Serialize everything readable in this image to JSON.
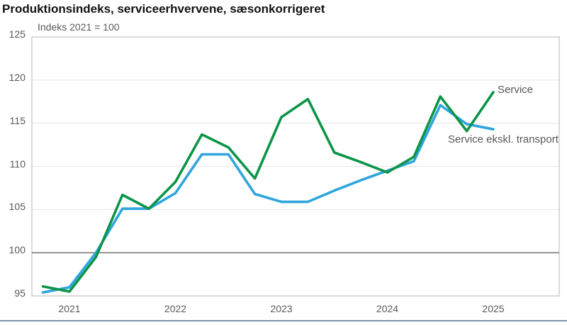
{
  "chart_data": {
    "type": "line",
    "title": "Produktionsindeks, serviceerhvervene, sæsonkorrigeret",
    "subtitle": "Indeks 2021 = 100",
    "x": [
      "2020 Q4",
      "2021 Q1",
      "2021 Q2",
      "2021 Q3",
      "2021 Q4",
      "2022 Q1",
      "2022 Q2",
      "2022 Q3",
      "2022 Q4",
      "2023 Q1",
      "2023 Q2",
      "2023 Q3",
      "2023 Q4",
      "2024 Q1",
      "2024 Q2",
      "2024 Q3",
      "2024 Q4",
      "2025 Q1"
    ],
    "x_tick_labels": [
      "2021",
      "2022",
      "2023",
      "2024",
      "2025"
    ],
    "ylim": [
      95,
      125
    ],
    "y_ticks": [
      95,
      100,
      105,
      110,
      115,
      120,
      125
    ],
    "baseline_value": 100,
    "grid": "horizontal-light",
    "legend_position": "inline-annotations-at-line-end",
    "series": [
      {
        "name": "Service",
        "color": "#0c9447",
        "values": [
          96.1,
          95.5,
          99.5,
          106.7,
          105.1,
          108.2,
          113.7,
          112.2,
          108.6,
          115.7,
          117.8,
          111.6,
          110.5,
          109.3,
          111.1,
          118.1,
          114.1,
          118.6
        ]
      },
      {
        "name": "Service ekskl. transport",
        "color": "#2fa5dd",
        "values": [
          95.4,
          96.0,
          100.0,
          105.1,
          105.1,
          106.9,
          111.4,
          111.4,
          106.8,
          105.9,
          105.9,
          107.2,
          108.4,
          109.5,
          110.6,
          117.1,
          114.9,
          114.3
        ]
      }
    ]
  },
  "colors": {
    "service_line": "#0c9447",
    "ekskl_transport_line": "#2fa5dd",
    "baseline": "#7f7f7f",
    "gridline": "#e6e6e1",
    "frame": "#b5b5b0",
    "tick_text": "#595959",
    "annotation_text": "#57585a",
    "separator": "#7e98aa",
    "title_text": "#111111"
  }
}
